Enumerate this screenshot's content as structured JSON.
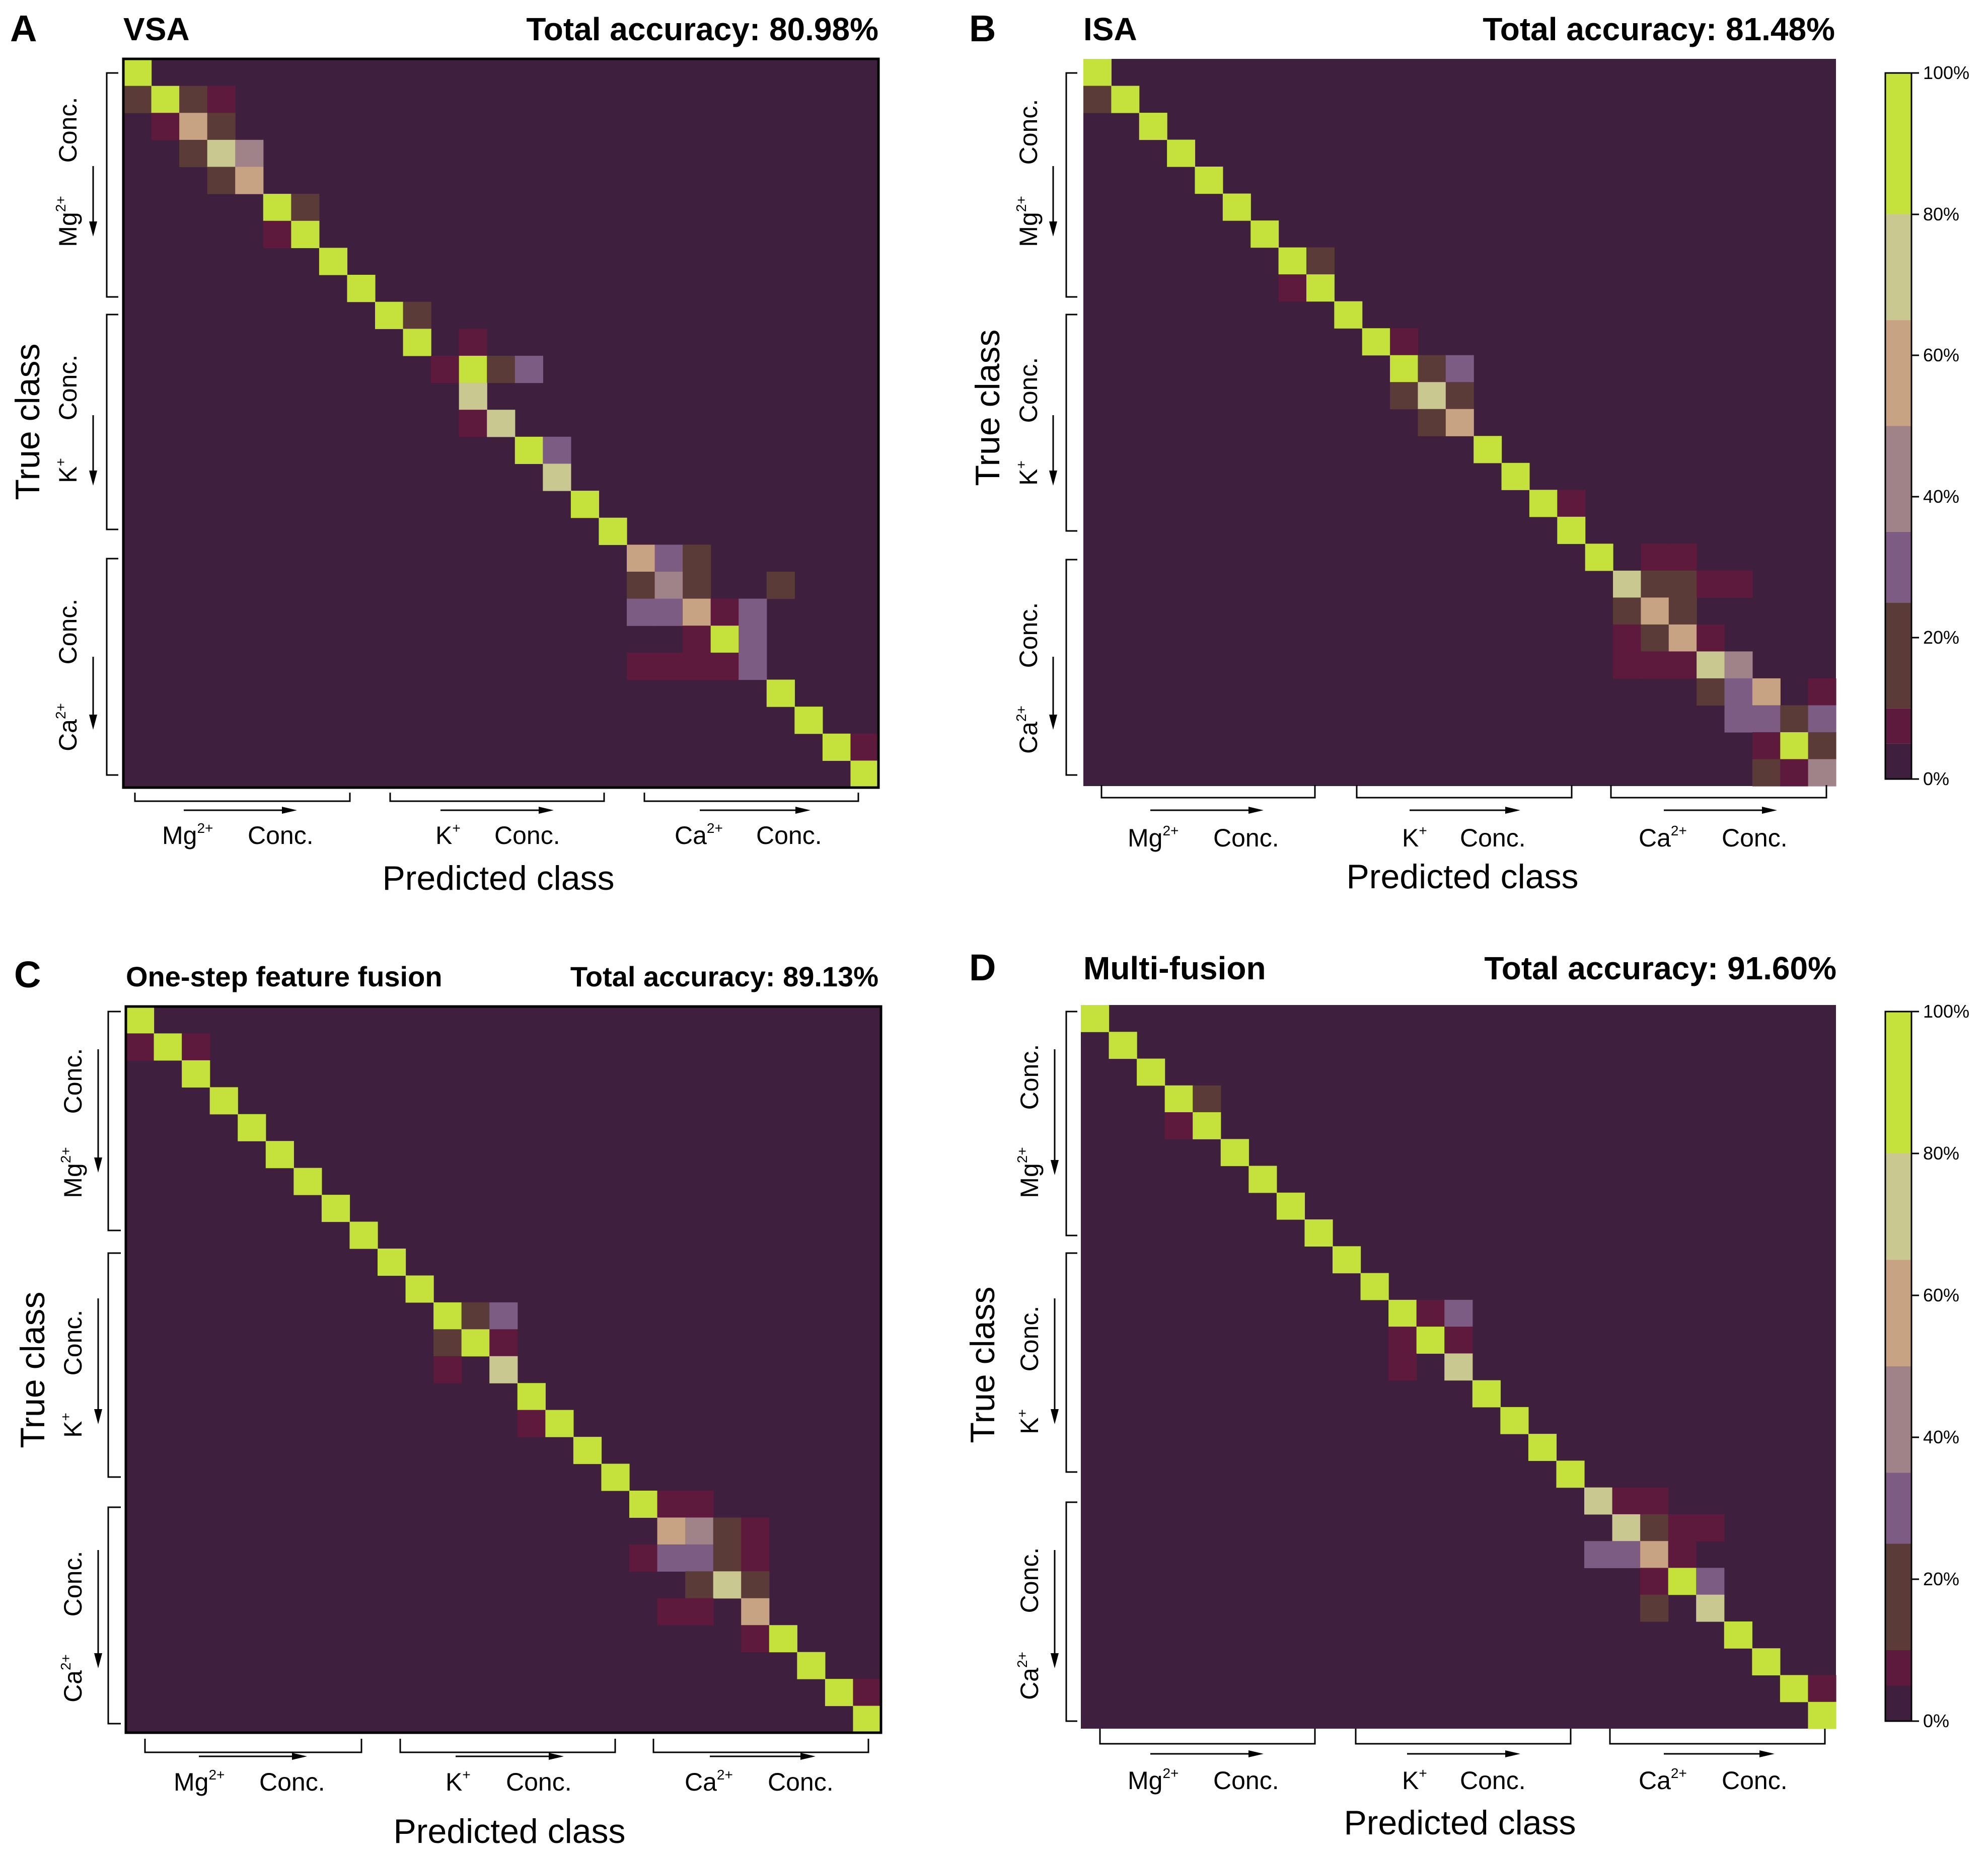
{
  "figure": {
    "ylabel": "True class",
    "xlabel": "Predicted class",
    "groups": [
      {
        "ion": "Mg",
        "charge": "2+",
        "conc": "Conc."
      },
      {
        "ion": "K",
        "charge": "+",
        "conc": "Conc."
      },
      {
        "ion": "Ca",
        "charge": "2+",
        "conc": "Conc."
      }
    ],
    "colorbar_ticks": [
      "100%",
      "80%",
      "60%",
      "40%",
      "20%",
      "0%"
    ]
  },
  "palette": {
    "bins": [
      {
        "range": [
          0,
          5
        ],
        "color": "#3f1f3e"
      },
      {
        "range": [
          5,
          10
        ],
        "color": "#5e1a3c"
      },
      {
        "range": [
          10,
          25
        ],
        "color": "#5b3b38"
      },
      {
        "range": [
          25,
          35
        ],
        "color": "#7c5c82"
      },
      {
        "range": [
          35,
          50
        ],
        "color": "#a08388"
      },
      {
        "range": [
          50,
          65
        ],
        "color": "#c8a383"
      },
      {
        "range": [
          65,
          80
        ],
        "color": "#c8c890"
      },
      {
        "range": [
          80,
          101
        ],
        "color": "#c4e13c"
      }
    ]
  },
  "chart_data": [
    {
      "type": "heatmap",
      "panel": "A",
      "title": "VSA",
      "accuracy_text": "Total accuracy: 80.98%",
      "n_classes": 27,
      "xlabel": "Predicted class",
      "ylabel": "True class",
      "diagonal_default": 100,
      "cells": [
        [
          0,
          0,
          100
        ],
        [
          1,
          0,
          10
        ],
        [
          1,
          1,
          100
        ],
        [
          1,
          2,
          20
        ],
        [
          1,
          3,
          8
        ],
        [
          2,
          1,
          8
        ],
        [
          2,
          2,
          60
        ],
        [
          2,
          3,
          20
        ],
        [
          3,
          2,
          20
        ],
        [
          3,
          3,
          70
        ],
        [
          3,
          4,
          40
        ],
        [
          4,
          3,
          20
        ],
        [
          4,
          4,
          60
        ],
        [
          5,
          5,
          100
        ],
        [
          5,
          6,
          20
        ],
        [
          6,
          5,
          8
        ],
        [
          6,
          6,
          100
        ],
        [
          7,
          7,
          100
        ],
        [
          8,
          8,
          100
        ],
        [
          9,
          9,
          100
        ],
        [
          9,
          10,
          20
        ],
        [
          10,
          10,
          100
        ],
        [
          10,
          12,
          8
        ],
        [
          11,
          11,
          8
        ],
        [
          11,
          12,
          100
        ],
        [
          11,
          13,
          20
        ],
        [
          11,
          14,
          30
        ],
        [
          12,
          12,
          70
        ],
        [
          13,
          12,
          8
        ],
        [
          13,
          13,
          70
        ],
        [
          14,
          14,
          100
        ],
        [
          14,
          15,
          30
        ],
        [
          15,
          15,
          70
        ],
        [
          16,
          16,
          100
        ],
        [
          17,
          17,
          100
        ],
        [
          18,
          18,
          60
        ],
        [
          18,
          19,
          30
        ],
        [
          18,
          20,
          20
        ],
        [
          19,
          18,
          20
        ],
        [
          19,
          19,
          40
        ],
        [
          19,
          20,
          20
        ],
        [
          19,
          23,
          20
        ],
        [
          20,
          18,
          30
        ],
        [
          20,
          19,
          30
        ],
        [
          20,
          20,
          60
        ],
        [
          20,
          21,
          8
        ],
        [
          20,
          22,
          30
        ],
        [
          21,
          20,
          8
        ],
        [
          21,
          21,
          100
        ],
        [
          21,
          22,
          30
        ],
        [
          22,
          18,
          8
        ],
        [
          22,
          19,
          8
        ],
        [
          22,
          20,
          8
        ],
        [
          22,
          21,
          8
        ],
        [
          22,
          22,
          30
        ],
        [
          23,
          23,
          100
        ],
        [
          24,
          24,
          100
        ],
        [
          25,
          25,
          100
        ],
        [
          25,
          26,
          8
        ],
        [
          26,
          26,
          100
        ]
      ]
    },
    {
      "type": "heatmap",
      "panel": "B",
      "title": "ISA",
      "accuracy_text": "Total accuracy: 81.48%",
      "n_classes": 27,
      "xlabel": "Predicted class",
      "ylabel": "True class",
      "diagonal_default": 100,
      "cells": [
        [
          0,
          0,
          100
        ],
        [
          1,
          0,
          20
        ],
        [
          1,
          1,
          100
        ],
        [
          2,
          2,
          100
        ],
        [
          3,
          3,
          100
        ],
        [
          4,
          4,
          100
        ],
        [
          5,
          5,
          100
        ],
        [
          6,
          6,
          100
        ],
        [
          7,
          7,
          100
        ],
        [
          7,
          8,
          20
        ],
        [
          8,
          7,
          8
        ],
        [
          8,
          8,
          100
        ],
        [
          9,
          9,
          100
        ],
        [
          10,
          10,
          100
        ],
        [
          10,
          11,
          8
        ],
        [
          11,
          11,
          100
        ],
        [
          11,
          12,
          20
        ],
        [
          11,
          13,
          30
        ],
        [
          12,
          11,
          20
        ],
        [
          12,
          12,
          70
        ],
        [
          12,
          13,
          20
        ],
        [
          13,
          12,
          20
        ],
        [
          13,
          13,
          60
        ],
        [
          14,
          14,
          100
        ],
        [
          15,
          15,
          100
        ],
        [
          16,
          16,
          100
        ],
        [
          16,
          17,
          8
        ],
        [
          17,
          17,
          100
        ],
        [
          18,
          18,
          100
        ],
        [
          18,
          20,
          8
        ],
        [
          18,
          21,
          8
        ],
        [
          19,
          19,
          70
        ],
        [
          19,
          20,
          20
        ],
        [
          19,
          21,
          20
        ],
        [
          19,
          22,
          8
        ],
        [
          19,
          23,
          8
        ],
        [
          20,
          19,
          20
        ],
        [
          20,
          20,
          60
        ],
        [
          20,
          21,
          20
        ],
        [
          21,
          19,
          8
        ],
        [
          21,
          20,
          20
        ],
        [
          21,
          21,
          60
        ],
        [
          21,
          22,
          8
        ],
        [
          22,
          19,
          8
        ],
        [
          22,
          20,
          8
        ],
        [
          22,
          21,
          8
        ],
        [
          22,
          22,
          70
        ],
        [
          22,
          23,
          40
        ],
        [
          23,
          22,
          20
        ],
        [
          23,
          23,
          30
        ],
        [
          23,
          24,
          60
        ],
        [
          23,
          26,
          8
        ],
        [
          24,
          23,
          30
        ],
        [
          24,
          24,
          30
        ],
        [
          24,
          25,
          20
        ],
        [
          24,
          26,
          30
        ],
        [
          25,
          24,
          8
        ],
        [
          25,
          25,
          100
        ],
        [
          25,
          26,
          20
        ],
        [
          26,
          24,
          20
        ],
        [
          26,
          25,
          8
        ],
        [
          26,
          26,
          40
        ]
      ]
    },
    {
      "type": "heatmap",
      "panel": "C",
      "title": "One-step feature fusion",
      "accuracy_text": "Total accuracy: 89.13%",
      "n_classes": 27,
      "xlabel": "Predicted class",
      "ylabel": "True class",
      "diagonal_default": 100,
      "cells": [
        [
          0,
          0,
          100
        ],
        [
          1,
          0,
          8
        ],
        [
          1,
          1,
          100
        ],
        [
          1,
          2,
          8
        ],
        [
          2,
          2,
          100
        ],
        [
          3,
          3,
          100
        ],
        [
          4,
          4,
          100
        ],
        [
          5,
          5,
          100
        ],
        [
          6,
          6,
          100
        ],
        [
          7,
          7,
          100
        ],
        [
          8,
          8,
          100
        ],
        [
          9,
          9,
          100
        ],
        [
          10,
          10,
          100
        ],
        [
          11,
          11,
          100
        ],
        [
          11,
          12,
          20
        ],
        [
          11,
          13,
          30
        ],
        [
          12,
          11,
          20
        ],
        [
          12,
          12,
          100
        ],
        [
          12,
          13,
          8
        ],
        [
          13,
          11,
          8
        ],
        [
          13,
          13,
          70
        ],
        [
          14,
          14,
          100
        ],
        [
          15,
          14,
          8
        ],
        [
          15,
          15,
          100
        ],
        [
          16,
          16,
          100
        ],
        [
          17,
          17,
          100
        ],
        [
          18,
          18,
          100
        ],
        [
          18,
          19,
          8
        ],
        [
          18,
          20,
          8
        ],
        [
          19,
          19,
          60
        ],
        [
          19,
          20,
          40
        ],
        [
          19,
          21,
          20
        ],
        [
          19,
          22,
          8
        ],
        [
          20,
          18,
          8
        ],
        [
          20,
          19,
          30
        ],
        [
          20,
          20,
          30
        ],
        [
          20,
          21,
          20
        ],
        [
          20,
          22,
          8
        ],
        [
          21,
          20,
          20
        ],
        [
          21,
          21,
          70
        ],
        [
          21,
          22,
          20
        ],
        [
          22,
          19,
          8
        ],
        [
          22,
          20,
          8
        ],
        [
          22,
          22,
          60
        ],
        [
          23,
          22,
          8
        ],
        [
          23,
          23,
          100
        ],
        [
          24,
          24,
          100
        ],
        [
          25,
          25,
          100
        ],
        [
          25,
          26,
          8
        ],
        [
          26,
          26,
          100
        ]
      ]
    },
    {
      "type": "heatmap",
      "panel": "D",
      "title": "Multi-fusion",
      "accuracy_text": "Total accuracy: 91.60%",
      "n_classes": 27,
      "xlabel": "Predicted class",
      "ylabel": "True class",
      "diagonal_default": 100,
      "cells": [
        [
          0,
          0,
          100
        ],
        [
          1,
          1,
          100
        ],
        [
          2,
          2,
          100
        ],
        [
          3,
          3,
          100
        ],
        [
          3,
          4,
          20
        ],
        [
          4,
          3,
          8
        ],
        [
          4,
          4,
          100
        ],
        [
          5,
          5,
          100
        ],
        [
          6,
          6,
          100
        ],
        [
          7,
          7,
          100
        ],
        [
          8,
          8,
          100
        ],
        [
          9,
          9,
          100
        ],
        [
          10,
          10,
          100
        ],
        [
          11,
          11,
          100
        ],
        [
          11,
          12,
          8
        ],
        [
          11,
          13,
          30
        ],
        [
          12,
          11,
          8
        ],
        [
          12,
          12,
          100
        ],
        [
          12,
          13,
          8
        ],
        [
          13,
          11,
          8
        ],
        [
          13,
          13,
          70
        ],
        [
          14,
          14,
          100
        ],
        [
          15,
          15,
          100
        ],
        [
          16,
          16,
          100
        ],
        [
          17,
          17,
          100
        ],
        [
          18,
          18,
          70
        ],
        [
          18,
          19,
          8
        ],
        [
          18,
          20,
          8
        ],
        [
          19,
          19,
          70
        ],
        [
          19,
          20,
          20
        ],
        [
          19,
          21,
          8
        ],
        [
          19,
          22,
          8
        ],
        [
          20,
          18,
          30
        ],
        [
          20,
          19,
          30
        ],
        [
          20,
          20,
          60
        ],
        [
          20,
          21,
          8
        ],
        [
          21,
          20,
          8
        ],
        [
          21,
          21,
          100
        ],
        [
          21,
          22,
          30
        ],
        [
          22,
          20,
          20
        ],
        [
          22,
          22,
          70
        ],
        [
          23,
          23,
          100
        ],
        [
          24,
          24,
          100
        ],
        [
          25,
          25,
          100
        ],
        [
          25,
          26,
          8
        ],
        [
          26,
          26,
          100
        ]
      ]
    }
  ]
}
